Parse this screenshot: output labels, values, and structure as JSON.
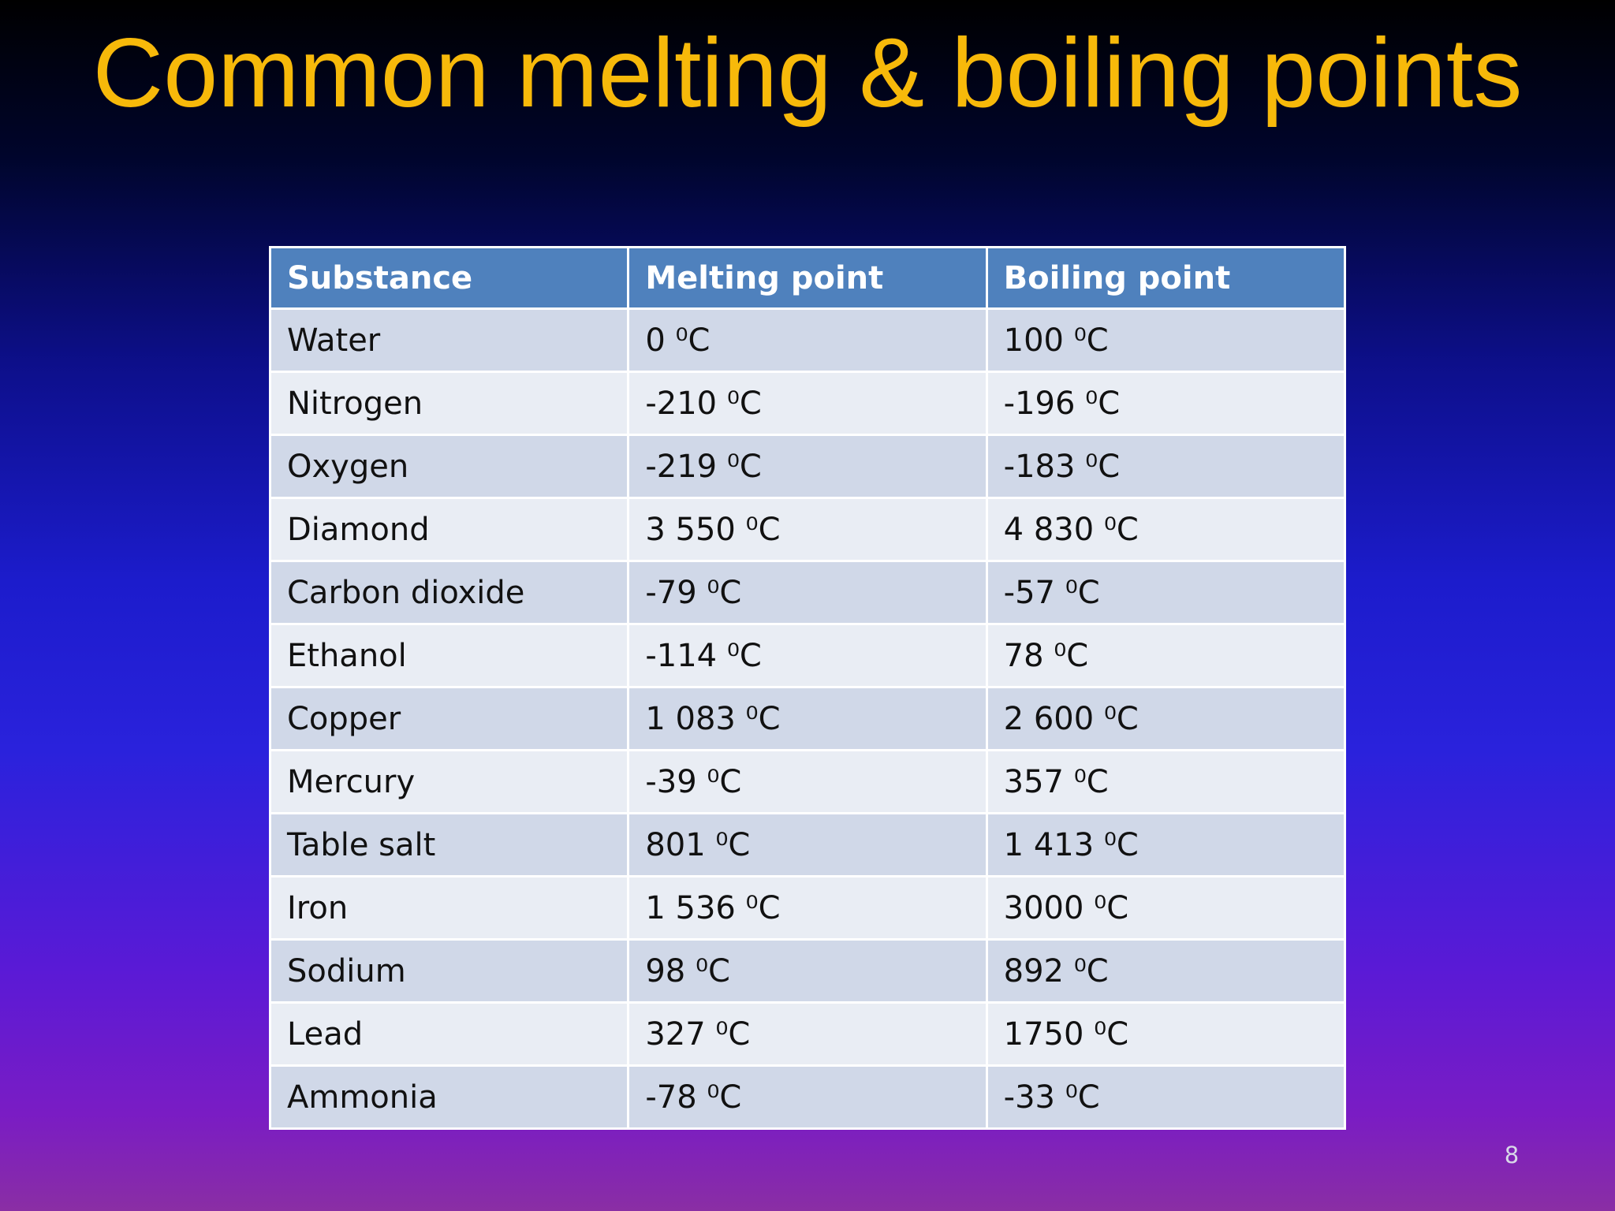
{
  "title": "Common melting & boiling points",
  "table": {
    "header": [
      "Substance",
      "Melting point",
      "Boiling point"
    ],
    "rows": [
      [
        "Water",
        "0 ⁰C",
        "100 ⁰C"
      ],
      [
        "Nitrogen",
        "-210 ⁰C",
        "-196 ⁰C"
      ],
      [
        "Oxygen",
        "-219 ⁰C",
        "-183 ⁰C"
      ],
      [
        "Diamond",
        "3 550 ⁰C",
        "4 830 ⁰C"
      ],
      [
        "Carbon dioxide",
        "-79 ⁰C",
        "-57 ⁰C"
      ],
      [
        "Ethanol",
        "-114 ⁰C",
        "78 ⁰C"
      ],
      [
        "Copper",
        "1 083 ⁰C",
        "2 600 ⁰C"
      ],
      [
        "Mercury",
        "-39 ⁰C",
        "357 ⁰C"
      ],
      [
        "Table salt",
        "801 ⁰C",
        "1 413 ⁰C"
      ],
      [
        "Iron",
        "1 536 ⁰C",
        "3000 ⁰C"
      ],
      [
        "Sodium",
        "98 ⁰C",
        "892 ⁰C"
      ],
      [
        "Lead",
        "327 ⁰C",
        "1750 ⁰C"
      ],
      [
        "Ammonia",
        "-78 ⁰C",
        "-33 ⁰C"
      ]
    ]
  },
  "page_number": "8"
}
